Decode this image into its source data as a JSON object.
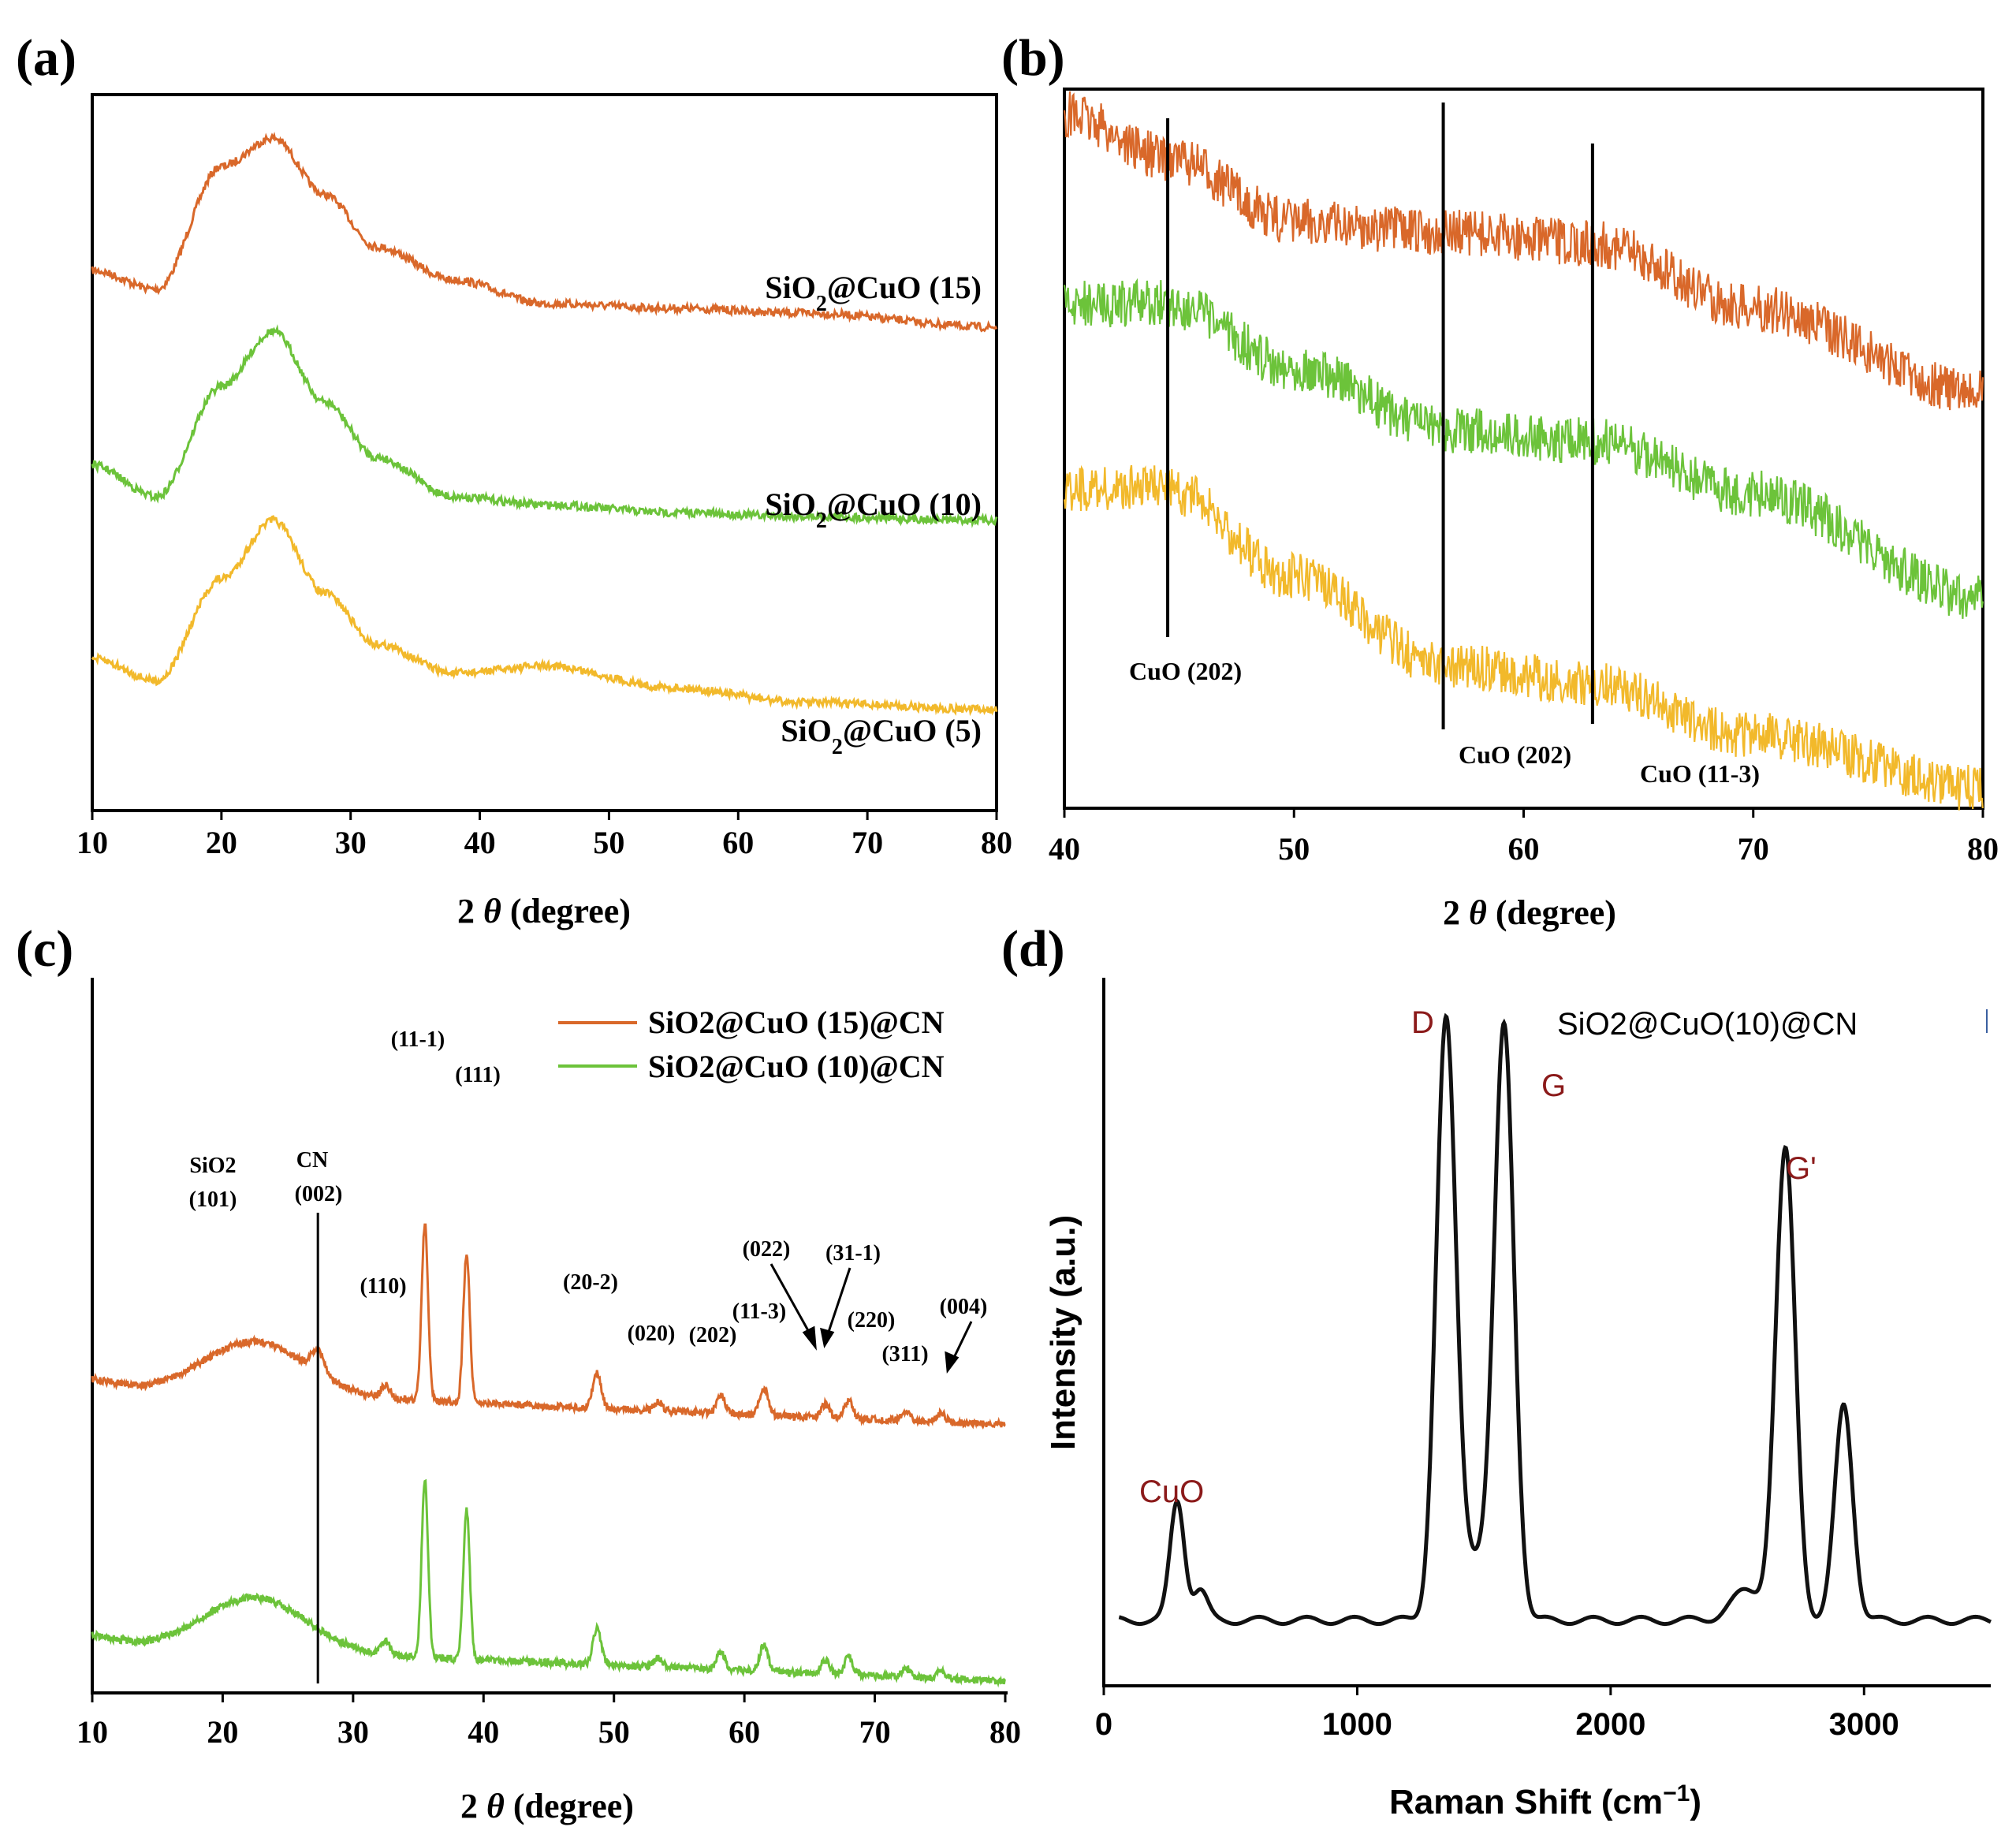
{
  "chart_data": [
    {
      "id": "a",
      "panel_label": "(a)",
      "type": "line",
      "xlabel": "2 θ (degree)",
      "xlabel_pre": "2 ",
      "xlabel_theta": "θ",
      "xlabel_post": " (degree)",
      "ylabel": "",
      "xlim": [
        10,
        80
      ],
      "xticks": [
        "10",
        "20",
        "30",
        "40",
        "50",
        "60",
        "70",
        "80"
      ],
      "series": [
        {
          "name": "SiO2@CuO (15)",
          "label_main": "SiO",
          "label_sub": "2",
          "label_rest": "@CuO (15)",
          "color": "#d9682a",
          "x": [
            10,
            15,
            20,
            24,
            28,
            32,
            38,
            45,
            55,
            65,
            80
          ],
          "y": [
            0.92,
            0.88,
            1.14,
            1.2,
            1.08,
            0.97,
            0.9,
            0.85,
            0.84,
            0.83,
            0.8
          ]
        },
        {
          "name": "SiO2@CuO (10)",
          "label_main": "SiO",
          "label_sub": "2",
          "label_rest": "@CuO (10)",
          "color": "#6cc33a",
          "x": [
            10,
            15,
            20,
            24,
            28,
            32,
            38,
            45,
            55,
            65,
            80
          ],
          "y": [
            0.52,
            0.44,
            0.72,
            0.86,
            0.68,
            0.54,
            0.44,
            0.42,
            0.4,
            0.39,
            0.38
          ]
        },
        {
          "name": "SiO2@CuO (5)",
          "label_main": "SiO",
          "label_sub": "2",
          "label_rest": "@CuO (5)",
          "color": "#f2b92b",
          "x": [
            10,
            15,
            20,
            24,
            28,
            32,
            38,
            45,
            55,
            65,
            80
          ],
          "y": [
            0.12,
            0.06,
            0.34,
            0.5,
            0.3,
            0.16,
            0.08,
            0.1,
            0.04,
            0.0,
            -0.02
          ]
        }
      ]
    },
    {
      "id": "b",
      "panel_label": "(b)",
      "type": "line",
      "xlabel": "2 θ (degree)",
      "xlabel_pre": "2 ",
      "xlabel_theta": "θ",
      "xlabel_post": " (degree)",
      "xlim": [
        40,
        80
      ],
      "xticks": [
        "40",
        "50",
        "60",
        "70",
        "80"
      ],
      "series": [
        {
          "name": "SiO2@CuO (15)",
          "color": "#d9682a",
          "x": [
            40,
            44.5,
            50,
            56.5,
            63,
            70,
            80
          ],
          "y": [
            1.0,
            0.92,
            0.8,
            0.78,
            0.76,
            0.64,
            0.48
          ]
        },
        {
          "name": "SiO2@CuO (10)",
          "color": "#6cc33a",
          "x": [
            40,
            44.5,
            50,
            56.5,
            63,
            70,
            80
          ],
          "y": [
            0.56,
            0.56,
            0.5,
            0.44,
            0.43,
            0.38,
            0.28
          ]
        },
        {
          "name": "SiO2@CuO (5)",
          "color": "#f2b92b",
          "x": [
            40,
            44.5,
            50,
            56.5,
            63,
            70,
            80
          ],
          "y": [
            0.3,
            0.3,
            0.2,
            0.1,
            0.08,
            0.02,
            -0.04
          ]
        }
      ],
      "vlines": [
        {
          "x": 44.5,
          "label": "CuO (202)"
        },
        {
          "x": 56.5,
          "label": "CuO (202)"
        },
        {
          "x": 63.0,
          "label": "CuO (11-3)"
        }
      ]
    },
    {
      "id": "c",
      "panel_label": "(c)",
      "type": "line",
      "xlabel": "2 θ (degree)",
      "xlabel_pre": "2 ",
      "xlabel_theta": "θ",
      "xlabel_post": " (degree)",
      "xlim": [
        10,
        80
      ],
      "xticks": [
        "10",
        "20",
        "30",
        "40",
        "50",
        "60",
        "70",
        "80"
      ],
      "series": [
        {
          "name": "SiO2@CuO (15)@CN",
          "color": "#d9682a",
          "offset": 0.52
        },
        {
          "name": "SiO2@CuO (10)@CN",
          "color": "#6cc33a",
          "offset": 0.0
        }
      ],
      "peaks": [
        {
          "x": 32.5,
          "h": 0.03,
          "label": "(110)"
        },
        {
          "x": 35.5,
          "h": 0.4,
          "label": "(11-1)"
        },
        {
          "x": 38.7,
          "h": 0.34,
          "label": "(111)"
        },
        {
          "x": 48.7,
          "h": 0.08,
          "label": "(20-2)"
        },
        {
          "x": 53.4,
          "h": 0.02,
          "label": "(020)"
        },
        {
          "x": 58.2,
          "h": 0.04,
          "label": "(202)"
        },
        {
          "x": 61.5,
          "h": 0.06,
          "label": "(11-3)"
        },
        {
          "x": 66.2,
          "h": 0.03,
          "label": "(022)"
        },
        {
          "x": 68.0,
          "h": 0.04,
          "label": "(220)"
        },
        {
          "x": 72.4,
          "h": 0.02,
          "label": "(311)"
        },
        {
          "x": 75.1,
          "h": 0.02,
          "label": "(004)"
        }
      ],
      "annotations": [
        {
          "text": "SiO2",
          "x": 19
        },
        {
          "text": "(101)",
          "x": 19
        },
        {
          "text": "CN",
          "x": 27.3
        },
        {
          "text": "(002)",
          "x": 27.3
        },
        {
          "text": "(31-1)",
          "x": 66.5
        }
      ],
      "vline_x": 27.3
    },
    {
      "id": "d",
      "panel_label": "(d)",
      "type": "line",
      "title": "SiO2@CuO(10)@CN",
      "xlabel": "Raman Shift (cm⁻¹)",
      "xlabel_pre": "Raman Shift (cm",
      "xlabel_sup": "−1",
      "xlabel_post": ")",
      "ylabel": "Intensity (a.u.)",
      "xlim": [
        0,
        3500
      ],
      "xticks": [
        "0",
        "1000",
        "2000",
        "3000"
      ],
      "bands": [
        {
          "label": "CuO",
          "x": 290,
          "h": 0.22
        },
        {
          "label": "D",
          "x": 1350,
          "h": 1.0
        },
        {
          "label": "G",
          "x": 1580,
          "h": 1.0
        },
        {
          "label": "G'",
          "x": 2690,
          "h": 0.8
        }
      ],
      "extra_peak": {
        "x": 2920,
        "h": 0.38
      }
    }
  ]
}
